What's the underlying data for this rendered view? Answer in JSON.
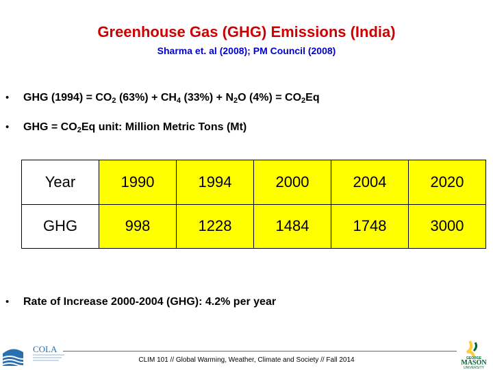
{
  "header": {
    "title": "Greenhouse Gas (GHG) Emissions (India)",
    "subtitle": "Sharma et. al (2008); PM Council (2008)"
  },
  "bullets": {
    "b1": {
      "prefix": "GHG (1994) = CO",
      "sub1": "2",
      "mid1": " (63%) + CH",
      "sub2": "4",
      "mid2": " (33%) + N",
      "sub3": "2",
      "mid3": "O (4%) = CO",
      "sub4": "2",
      "suffix": "Eq"
    },
    "b2": {
      "prefix": "GHG = CO",
      "sub1": "2",
      "suffix": "Eq unit: Million Metric Tons (Mt)"
    },
    "b3": {
      "text": "Rate of Increase 2000-2004 (GHG): 4.2% per year"
    },
    "symbol": "•"
  },
  "table": {
    "row1": [
      "Year",
      "1990",
      "1994",
      "2000",
      "2004",
      "2020"
    ],
    "row2": [
      "GHG",
      "998",
      "1228",
      "1484",
      "1748",
      "3000"
    ]
  },
  "footer": {
    "text": "CLIM 101 // Global Warming, Weather, Climate and Society // Fall 2014",
    "logo_left": "COLA",
    "logo_right": "GEORGE MASON UNIVERSITY"
  },
  "colors": {
    "title": "#cc0000",
    "subtitle": "#0000cc",
    "table_fill": "#ffff00",
    "gmu_green": "#006633",
    "gmu_gold": "#ffcc33"
  }
}
